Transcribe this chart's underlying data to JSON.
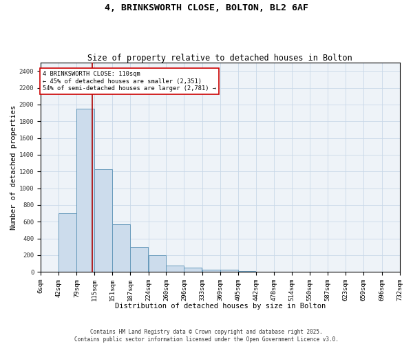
{
  "title1": "4, BRINKSWORTH CLOSE, BOLTON, BL2 6AF",
  "title2": "Size of property relative to detached houses in Bolton",
  "xlabel": "Distribution of detached houses by size in Bolton",
  "ylabel": "Number of detached properties",
  "bins": [
    6,
    42,
    79,
    115,
    151,
    187,
    224,
    260,
    296,
    333,
    369,
    405,
    442,
    478,
    514,
    550,
    587,
    623,
    659,
    696,
    732
  ],
  "bar_values": [
    0,
    700,
    1950,
    1230,
    570,
    300,
    200,
    80,
    50,
    30,
    30,
    10,
    5,
    3,
    2,
    1,
    0,
    0,
    0,
    0
  ],
  "bar_color": "#ccdcec",
  "bar_edge_color": "#6699bb",
  "bar_edge_width": 0.7,
  "grid_color": "#c8d8e8",
  "background_color": "#eef3f8",
  "vline_x": 110,
  "vline_color": "#aa0000",
  "annotation_text": "4 BRINKSWORTH CLOSE: 110sqm\n← 45% of detached houses are smaller (2,351)\n54% of semi-detached houses are larger (2,781) →",
  "annotation_box_color": "#ffffff",
  "annotation_edge_color": "#cc0000",
  "ylim": [
    0,
    2500
  ],
  "yticks": [
    0,
    200,
    400,
    600,
    800,
    1000,
    1200,
    1400,
    1600,
    1800,
    2000,
    2200,
    2400
  ],
  "copyright_text": "Contains HM Land Registry data © Crown copyright and database right 2025.\nContains public sector information licensed under the Open Government Licence v3.0.",
  "title1_fontsize": 9.5,
  "title2_fontsize": 8.5,
  "xlabel_fontsize": 7.5,
  "ylabel_fontsize": 7.5,
  "tick_fontsize": 6.5,
  "annotation_fontsize": 6.2,
  "copyright_fontsize": 5.5
}
